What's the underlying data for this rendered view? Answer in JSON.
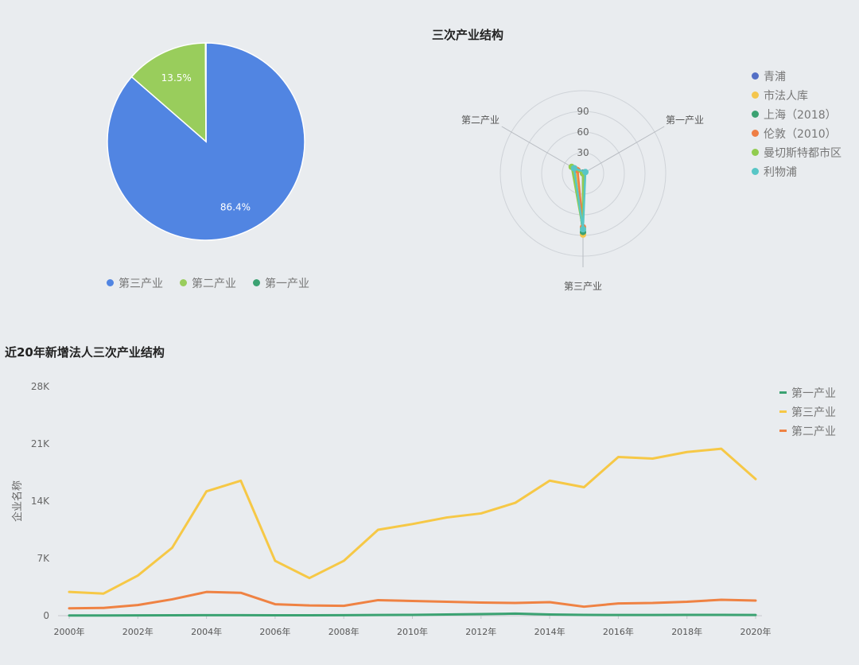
{
  "pie_legend": [
    "第三产业",
    "第二产业",
    "第一产业"
  ],
  "radar_title": "三次产业结构",
  "line_title": "近20年新增法人三次产业结构",
  "line_ylabel": "企业名称",
  "colors": {
    "tertiary": "#5185e2",
    "secondary": "#99cd5c",
    "primary": "#3ba272",
    "qingpu": "#5470c6",
    "shifaren": "#f4c64e",
    "shanghai": "#3ba272",
    "london": "#ee7e45",
    "manchester": "#91cc4f",
    "liverpool": "#58c6c6",
    "line_primary": "#3ba272",
    "line_tertiary": "#f6c846",
    "line_secondary": "#ef8243"
  },
  "chart_data": [
    {
      "type": "pie",
      "slices": [
        {
          "name": "第三产业",
          "value": 86.4,
          "label": "86.4%"
        },
        {
          "name": "第二产业",
          "value": 13.5,
          "label": "13.5%"
        },
        {
          "name": "第一产业",
          "value": 0.1,
          "label": ""
        }
      ],
      "legend_position": "bottom"
    },
    {
      "type": "radar",
      "title": "三次产业结构",
      "axes": [
        "第一产业",
        "第二产业",
        "第三产业"
      ],
      "ticks": [
        "0",
        "30",
        "60",
        "90"
      ],
      "rmax": 120,
      "legend_position": "right",
      "series": [
        {
          "name": "青浦",
          "values": [
            0.1,
            13.5,
            86.4
          ]
        },
        {
          "name": "市法人库",
          "values": [
            0.3,
            11.0,
            88.7
          ]
        },
        {
          "name": "上海（2018）",
          "values": [
            0.1,
            15.0,
            84.9
          ]
        },
        {
          "name": "伦敦（2010）",
          "values": [
            0.2,
            9.0,
            78.0
          ]
        },
        {
          "name": "曼切斯特都市区",
          "values": [
            0.2,
            19.0,
            80.8
          ]
        },
        {
          "name": "利物浦",
          "values": [
            4.0,
            15.0,
            81.0
          ]
        }
      ]
    },
    {
      "type": "line",
      "title": "近20年新增法人三次产业结构",
      "ylabel": "企业名称",
      "x": [
        "2000年",
        "2001年",
        "2002年",
        "2003年",
        "2004年",
        "2005年",
        "2006年",
        "2007年",
        "2008年",
        "2009年",
        "2010年",
        "2011年",
        "2012年",
        "2013年",
        "2014年",
        "2015年",
        "2016年",
        "2017年",
        "2018年",
        "2019年",
        "2020年"
      ],
      "xtick_labels": [
        "2000年",
        "2002年",
        "2004年",
        "2006年",
        "2008年",
        "2010年",
        "2012年",
        "2014年",
        "2016年",
        "2018年",
        "2020年"
      ],
      "yticks": [
        "0",
        "7K",
        "14K",
        "21K",
        "28K"
      ],
      "ylim": [
        0,
        28000
      ],
      "legend_position": "top-right",
      "series": [
        {
          "name": "第一产业",
          "values": [
            30,
            30,
            40,
            50,
            60,
            60,
            50,
            50,
            60,
            80,
            100,
            150,
            200,
            250,
            150,
            100,
            80,
            80,
            100,
            100,
            80
          ]
        },
        {
          "name": "第三产业",
          "values": [
            2900,
            2700,
            4900,
            8300,
            15200,
            16500,
            6700,
            4600,
            6700,
            10500,
            11200,
            12000,
            12500,
            13800,
            16500,
            15700,
            19400,
            19200,
            20000,
            20400,
            16700
          ]
        },
        {
          "name": "第二产业",
          "values": [
            900,
            950,
            1300,
            2000,
            2900,
            2800,
            1400,
            1250,
            1200,
            1900,
            1800,
            1700,
            1600,
            1550,
            1650,
            1100,
            1500,
            1550,
            1700,
            1950,
            1850
          ]
        }
      ]
    }
  ]
}
